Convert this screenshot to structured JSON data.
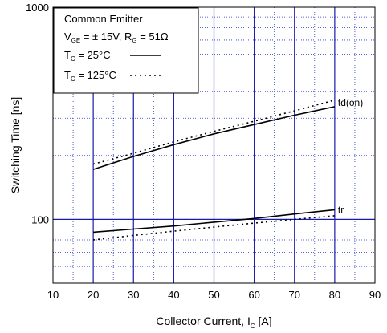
{
  "chart_data": {
    "type": "line",
    "x_axis": {
      "label_main": "Collector Current, I",
      "label_sub": "C",
      "label_unit": " [A]",
      "range": [
        10,
        90
      ],
      "ticks": [
        10,
        20,
        30,
        40,
        50,
        60,
        70,
        80,
        90
      ]
    },
    "y_axis": {
      "label": "Switching Time [ns]",
      "scale": "log",
      "range": [
        50,
        1000
      ],
      "tick_values": [
        100,
        1000
      ],
      "tick_labels": [
        "100",
        "1000"
      ]
    },
    "grid": {
      "major_vertical": [
        20,
        30,
        40,
        50,
        60,
        70,
        80
      ],
      "major_horizontal": [
        100
      ],
      "minor_dotted": true
    },
    "legend": {
      "position": "top-left",
      "line1": "Common Emitter",
      "vge_label": "V",
      "vge_sub": "GE",
      "vge_value": " = ±  15V, R",
      "rg_sub": "G",
      "rg_value": " = 51Ω",
      "tc_label": "T",
      "tc_sub": "C",
      "tc25_value": " =   25°C",
      "tc125_value": " = 125°C"
    },
    "series": [
      {
        "name": "td(on)",
        "temperature": "25°C",
        "style": "solid",
        "x": [
          20,
          30,
          40,
          50,
          60,
          70,
          80
        ],
        "y": [
          172,
          198,
          225,
          253,
          280,
          310,
          340
        ]
      },
      {
        "name": "td(on)",
        "temperature": "125°C",
        "style": "dotted",
        "x": [
          20,
          30,
          40,
          50,
          60,
          70,
          80
        ],
        "y": [
          182,
          205,
          232,
          260,
          290,
          325,
          365
        ]
      },
      {
        "name": "tr",
        "temperature": "25°C",
        "style": "solid",
        "x": [
          20,
          30,
          40,
          50,
          60,
          70,
          80
        ],
        "y": [
          87,
          90,
          93,
          97,
          101,
          106,
          111
        ]
      },
      {
        "name": "tr",
        "temperature": "125°C",
        "style": "dotted",
        "x": [
          20,
          30,
          40,
          50,
          60,
          70,
          80
        ],
        "y": [
          80,
          84,
          88,
          92,
          96,
          100,
          104
        ]
      }
    ],
    "series_labels": [
      {
        "text": "td(on)",
        "anchor_x": 80,
        "anchor_y": 355
      },
      {
        "text": "tr",
        "anchor_x": 80,
        "anchor_y": 111
      }
    ]
  }
}
